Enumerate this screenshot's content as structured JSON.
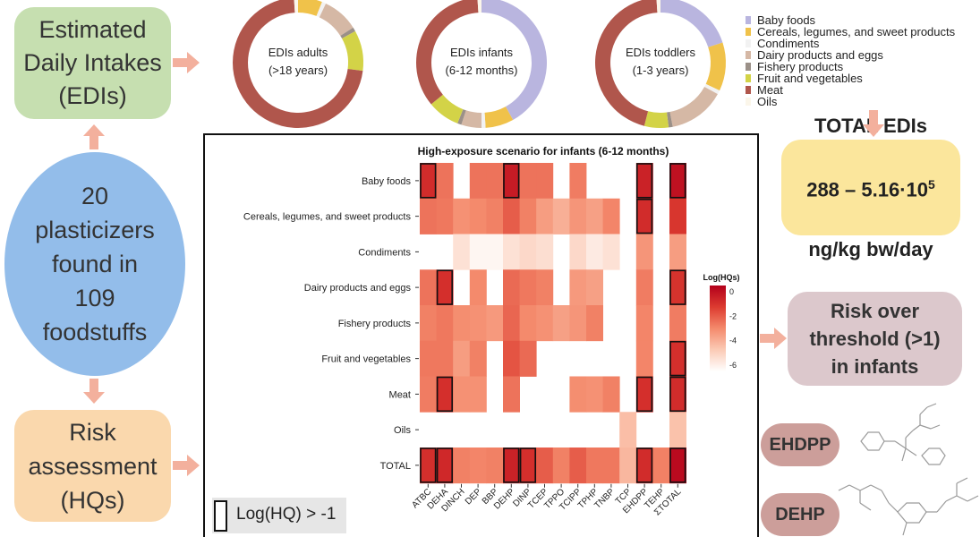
{
  "boxes": {
    "edi": "Estimated\nDaily Intakes\n(EDIs)",
    "plasticizers": "20\nplasticizers\nfound in\n109\nfoodstuffs",
    "risk": "Risk\nassessment\n(HQs)",
    "total_title": "TOTAL EDIs",
    "total_range": "288 – 5.16·10",
    "total_exp": "5",
    "total_unit": "ng/kg bw/day",
    "over": "Risk over\nthreshold (>1)\nin infants"
  },
  "donuts": [
    {
      "line1": "EDIs adults",
      "line2": "(>18 years)",
      "segments": [
        {
          "cat": "Baby foods",
          "frac": 0.0
        },
        {
          "cat": "Cereals, legumes, and sweet products",
          "frac": 0.06
        },
        {
          "cat": "Condiments",
          "frac": 0.01
        },
        {
          "cat": "Dairy products and eggs",
          "frac": 0.09
        },
        {
          "cat": "Fishery products",
          "frac": 0.01
        },
        {
          "cat": "Fruit and vegetables",
          "frac": 0.1
        },
        {
          "cat": "Meat",
          "frac": 0.72
        },
        {
          "cat": "Oils",
          "frac": 0.01
        }
      ]
    },
    {
      "line1": "EDIs infants",
      "line2": "(6-12 months)",
      "segments": [
        {
          "cat": "Baby foods",
          "frac": 0.42
        },
        {
          "cat": "Cereals, legumes, and sweet products",
          "frac": 0.07
        },
        {
          "cat": "Condiments",
          "frac": 0.01
        },
        {
          "cat": "Dairy products and eggs",
          "frac": 0.05
        },
        {
          "cat": "Fishery products",
          "frac": 0.01
        },
        {
          "cat": "Fruit and vegetables",
          "frac": 0.08
        },
        {
          "cat": "Meat",
          "frac": 0.35
        },
        {
          "cat": "Oils",
          "frac": 0.01
        }
      ]
    },
    {
      "line1": "EDIs toddlers",
      "line2": "(1-3 years)",
      "segments": [
        {
          "cat": "Baby foods",
          "frac": 0.2
        },
        {
          "cat": "Cereals, legumes, and sweet products",
          "frac": 0.12
        },
        {
          "cat": "Condiments",
          "frac": 0.01
        },
        {
          "cat": "Dairy products and eggs",
          "frac": 0.14
        },
        {
          "cat": "Fishery products",
          "frac": 0.01
        },
        {
          "cat": "Fruit and vegetables",
          "frac": 0.06
        },
        {
          "cat": "Meat",
          "frac": 0.45
        },
        {
          "cat": "Oils",
          "frac": 0.01
        }
      ]
    }
  ],
  "categories": [
    {
      "label": "Baby foods",
      "color": "#b9b5df"
    },
    {
      "label": "Cereals, legumes, and sweet products",
      "color": "#f0c24a"
    },
    {
      "label": "Condiments",
      "color": "#f2f2f2"
    },
    {
      "label": "Dairy products and eggs",
      "color": "#d5b8a5"
    },
    {
      "label": "Fishery products",
      "color": "#9b9088"
    },
    {
      "label": "Fruit and vegetables",
      "color": "#d3d347"
    },
    {
      "label": "Meat",
      "color": "#b0564c"
    },
    {
      "label": "Oils",
      "color": "#fbf6ea"
    }
  ],
  "chart_data": {
    "type": "heatmap",
    "title": "High-exposure scenario for infants (6-12 months)",
    "rows": [
      "Baby foods",
      "Cereals, legumes, and sweet products",
      "Condiments",
      "Dairy products and eggs",
      "Fishery products",
      "Fruit and vegetables",
      "Meat",
      "Oils",
      "TOTAL"
    ],
    "cols": [
      "ATBC",
      "DEHA",
      "DINCH",
      "DEP",
      "BBP",
      "DEHP",
      "DINP",
      "TCEP",
      "TPPO",
      "TCIPP",
      "TPHP",
      "TNBP",
      "TCP",
      "EHDPP",
      "TEHP",
      "ΣTOTAL"
    ],
    "values": [
      [
        -0.8,
        -2.5,
        null,
        -2.5,
        -2.5,
        -0.3,
        -2.5,
        -2.5,
        null,
        -2.7,
        null,
        null,
        null,
        -0.5,
        null,
        0.0
      ],
      [
        -2.5,
        -2.6,
        -3.2,
        -3.0,
        -2.8,
        -2.0,
        -2.8,
        -3.5,
        -4.0,
        -3.3,
        -3.6,
        -2.9,
        null,
        -0.8,
        null,
        -1.1
      ],
      [
        null,
        null,
        -5.5,
        -6.2,
        -6.2,
        -5.5,
        -5.2,
        -5.4,
        null,
        -5.2,
        -5.8,
        -5.5,
        null,
        -3.3,
        null,
        -3.5
      ],
      [
        -2.5,
        -0.9,
        null,
        -3.0,
        null,
        -2.3,
        -2.6,
        -2.8,
        null,
        -3.4,
        -3.6,
        null,
        null,
        -2.7,
        null,
        -1.0
      ],
      [
        -2.8,
        -2.6,
        -3.1,
        -3.2,
        -3.4,
        -2.2,
        -3.0,
        -3.2,
        -3.6,
        -3.3,
        -2.8,
        null,
        null,
        -2.9,
        null,
        -2.7
      ],
      [
        -2.6,
        -2.6,
        -3.5,
        -2.8,
        null,
        -1.8,
        -2.3,
        null,
        null,
        null,
        null,
        null,
        null,
        -2.9,
        null,
        -0.9
      ],
      [
        -2.7,
        -0.9,
        -3.2,
        -3.2,
        null,
        -2.5,
        null,
        null,
        null,
        -3.1,
        -3.2,
        -2.8,
        null,
        -0.9,
        null,
        -0.8
      ],
      [
        null,
        null,
        null,
        null,
        null,
        null,
        null,
        null,
        null,
        null,
        null,
        null,
        -4.4,
        null,
        null,
        -4.5
      ],
      [
        -0.9,
        -0.7,
        -2.8,
        -2.9,
        -2.8,
        -0.5,
        -0.9,
        -2.0,
        -2.8,
        -2.0,
        -2.6,
        -2.6,
        -4.2,
        -0.8,
        -2.8,
        0.2
      ]
    ],
    "outlined": [
      [
        0,
        0
      ],
      [
        0,
        5
      ],
      [
        0,
        13
      ],
      [
        0,
        15
      ],
      [
        1,
        13
      ],
      [
        3,
        1
      ],
      [
        3,
        15
      ],
      [
        5,
        15
      ],
      [
        6,
        1
      ],
      [
        6,
        13
      ],
      [
        6,
        15
      ],
      [
        8,
        0
      ],
      [
        8,
        1
      ],
      [
        8,
        5
      ],
      [
        8,
        6
      ],
      [
        8,
        13
      ],
      [
        8,
        15
      ]
    ],
    "colorbar": {
      "title": "Log(HQs)",
      "ticks": [
        0,
        -2,
        -4,
        -6
      ],
      "range": [
        -6.5,
        0.5
      ],
      "colors": [
        "#ffffff",
        "#fbcbb6",
        "#f48a6c",
        "#dc3b30",
        "#b3001b"
      ]
    }
  },
  "hq_note": "Log(HQ) > -1",
  "pills": {
    "ehdpp": "EHDPP",
    "dehp": "DEHP"
  }
}
